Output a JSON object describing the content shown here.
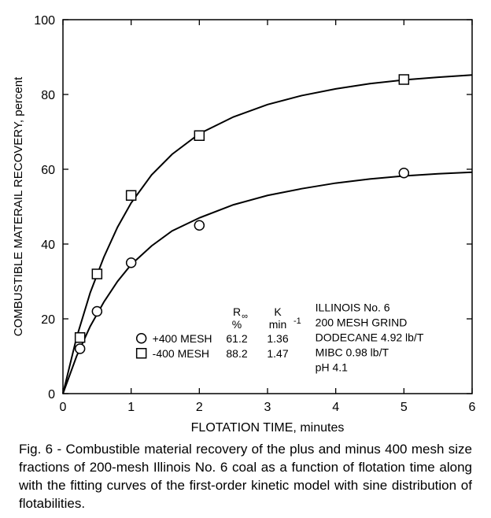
{
  "chart": {
    "type": "scatter_with_curves",
    "x_axis": {
      "label": "FLOTATION TIME, minutes",
      "min": 0,
      "max": 6,
      "ticks": [
        0,
        1,
        2,
        3,
        4,
        5,
        6
      ],
      "label_fontsize": 16,
      "tick_fontsize": 16
    },
    "y_axis": {
      "label": "COMBUSTIBLE MATERAIL RECOVERY, percent",
      "min": 0,
      "max": 100,
      "ticks": [
        0,
        20,
        40,
        60,
        80,
        100
      ],
      "label_fontsize": 15,
      "tick_fontsize": 16
    },
    "series": [
      {
        "key": "plus400",
        "marker": "circle",
        "label": "+400 MESH",
        "Rinf": 61.2,
        "K": 1.36,
        "points": [
          [
            0.25,
            12
          ],
          [
            0.5,
            22
          ],
          [
            1,
            35
          ],
          [
            2,
            45
          ],
          [
            5,
            59
          ]
        ],
        "curve": [
          [
            0,
            0
          ],
          [
            0.2,
            10
          ],
          [
            0.4,
            18
          ],
          [
            0.6,
            24.5
          ],
          [
            0.8,
            30
          ],
          [
            1,
            34.5
          ],
          [
            1.3,
            39.5
          ],
          [
            1.6,
            43.5
          ],
          [
            2,
            47
          ],
          [
            2.5,
            50.5
          ],
          [
            3,
            53
          ],
          [
            3.5,
            54.8
          ],
          [
            4,
            56.3
          ],
          [
            4.5,
            57.4
          ],
          [
            5,
            58.2
          ],
          [
            5.5,
            58.8
          ],
          [
            6,
            59.2
          ]
        ]
      },
      {
        "key": "minus400",
        "marker": "square",
        "label": "-400 MESH",
        "Rinf": 88.2,
        "K": 1.47,
        "points": [
          [
            0.25,
            15
          ],
          [
            0.5,
            32
          ],
          [
            1,
            53
          ],
          [
            2,
            69
          ],
          [
            5,
            84
          ]
        ],
        "curve": [
          [
            0,
            0
          ],
          [
            0.2,
            15
          ],
          [
            0.4,
            27
          ],
          [
            0.6,
            36.5
          ],
          [
            0.8,
            44.5
          ],
          [
            1,
            51
          ],
          [
            1.3,
            58.5
          ],
          [
            1.6,
            64
          ],
          [
            2,
            69.5
          ],
          [
            2.5,
            74
          ],
          [
            3,
            77.3
          ],
          [
            3.5,
            79.7
          ],
          [
            4,
            81.5
          ],
          [
            4.5,
            82.9
          ],
          [
            5,
            83.9
          ],
          [
            5.5,
            84.6
          ],
          [
            6,
            85.2
          ]
        ]
      }
    ],
    "style": {
      "background": "#ffffff",
      "axis_color": "#000000",
      "curve_color": "#000000",
      "curve_width": 2,
      "marker_size": 12,
      "marker_stroke": "#000000",
      "marker_fill": "#ffffff",
      "marker_stroke_width": 1.5,
      "tick_len": 7,
      "legend_fontsize": 14,
      "info_fontsize": 14
    },
    "legend_table": {
      "header": {
        "col1": "R",
        "col1_sub": "∞",
        "col1_unit": "%",
        "col2": "K",
        "col2_unit": "min",
        "col2_sup": "-1"
      },
      "row1": {
        "label": "+400 MESH",
        "Rinf": "61.2",
        "K": "1.36"
      },
      "row2": {
        "label": "-400 MESH",
        "Rinf": "88.2",
        "K": "1.47"
      }
    },
    "info_block": {
      "l1": "ILLINOIS No. 6",
      "l2": "200 MESH GRIND",
      "l3": "DODECANE 4.92 lb/T",
      "l4": "MIBC 0.98 lb/T",
      "l5": "pH 4.1"
    }
  },
  "caption": "Fig. 6 - Combustible material recovery of the plus and minus 400 mesh size fractions of 200-mesh Illinois No. 6 coal as a function of flotation time along with the fitting curves of the first-order kinetic model with sine distribution of flotabilities."
}
